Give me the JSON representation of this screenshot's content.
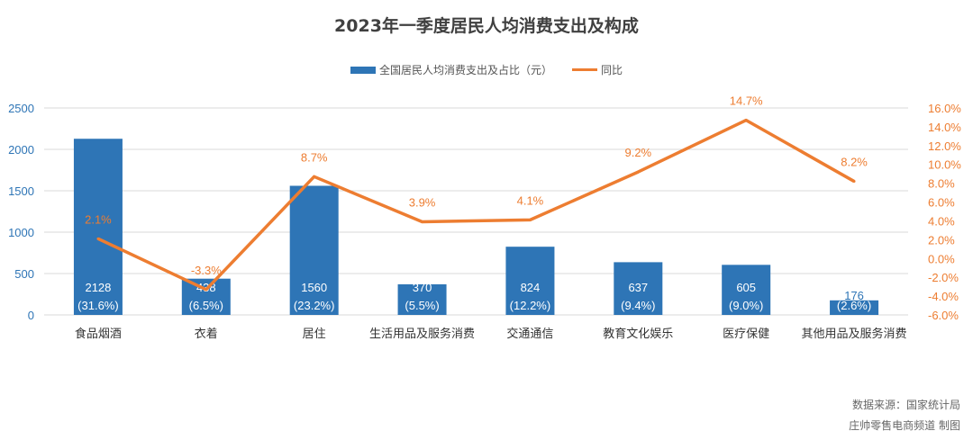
{
  "chart_data": {
    "type": "bar+line",
    "title": "2023年一季度居民人均消费支出及构成",
    "categories": [
      "食品烟酒",
      "衣着",
      "居住",
      "生活用品及服务消费",
      "交通通信",
      "教育文化娱乐",
      "医疗保健",
      "其他用品及服务消费"
    ],
    "series": [
      {
        "name": "全国居民人均消费支出及占比（元）",
        "type": "bar",
        "axis": "left",
        "color": "#2e75b6",
        "values": [
          2128,
          438,
          1560,
          370,
          824,
          637,
          605,
          176
        ],
        "labels": [
          "2128\n(31.6%)",
          "438\n(6.5%)",
          "1560\n(23.2%)",
          "370\n(5.5%)",
          "824\n(12.2%)",
          "637\n(9.4%)",
          "605\n(9.0%)",
          "176\n(2.6%)"
        ]
      },
      {
        "name": "同比",
        "type": "line",
        "axis": "right",
        "color": "#ed7d31",
        "values": [
          2.1,
          -3.3,
          8.7,
          3.9,
          4.1,
          9.2,
          14.7,
          8.2
        ],
        "labels": [
          "2.1%",
          "-3.3%",
          "8.7%",
          "3.9%",
          "4.1%",
          "9.2%",
          "14.7%",
          "8.2%"
        ]
      }
    ],
    "y_left": {
      "range": [
        0,
        2500
      ],
      "ticks": [
        "0",
        "500",
        "1000",
        "1500",
        "2000",
        "2500"
      ]
    },
    "y_right": {
      "range": [
        -6,
        16
      ],
      "ticks": [
        "-6.0%",
        "-4.0%",
        "-2.0%",
        "0.0%",
        "2.0%",
        "4.0%",
        "6.0%",
        "8.0%",
        "10.0%",
        "12.0%",
        "14.0%",
        "16.0%"
      ]
    },
    "grid": true,
    "legend": "top"
  },
  "footer": {
    "source": "数据来源：国家统计局",
    "credit": "庄帅零售电商频道 制图"
  }
}
